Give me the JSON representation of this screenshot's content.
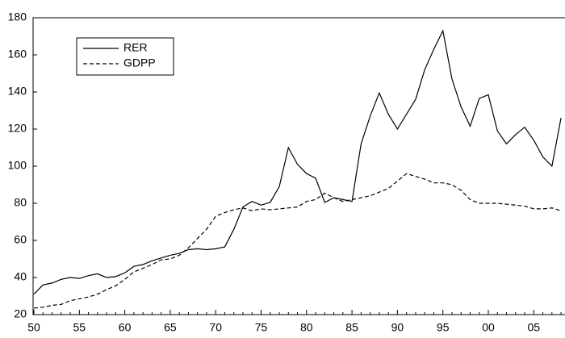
{
  "chart_data": {
    "type": "line",
    "categories": [
      "50",
      null,
      null,
      null,
      null,
      "55",
      null,
      null,
      null,
      null,
      "60",
      null,
      null,
      null,
      null,
      "65",
      null,
      null,
      null,
      null,
      "70",
      null,
      null,
      null,
      null,
      "75",
      null,
      null,
      null,
      null,
      "80",
      null,
      null,
      null,
      null,
      "85",
      null,
      null,
      null,
      null,
      "90",
      null,
      null,
      null,
      null,
      "95",
      null,
      null,
      null,
      null,
      "00",
      null,
      null,
      null,
      null,
      "05",
      null,
      null,
      null
    ],
    "series": [
      {
        "name": "RER",
        "color": "#000000",
        "line_style": "solid",
        "values": [
          31,
          36,
          37,
          39,
          40,
          39.5,
          41,
          42,
          40,
          40.5,
          42.5,
          46,
          47,
          49,
          50.5,
          52,
          53,
          55,
          55.5,
          55,
          55.5,
          56.5,
          66,
          78,
          81,
          79,
          80.5,
          89,
          110,
          101,
          96,
          93.5,
          80.5,
          83,
          82,
          81,
          112,
          127,
          139.5,
          128,
          120,
          128,
          136,
          152,
          163,
          173,
          147,
          132,
          121.5,
          136.5,
          138.5,
          119,
          112,
          117,
          121,
          114,
          105,
          100,
          126
        ]
      },
      {
        "name": "GDPP",
        "color": "#000000",
        "line_style": "dashed",
        "values": [
          23.5,
          24,
          25,
          25.5,
          27.5,
          28.5,
          29.5,
          31,
          33.5,
          35.5,
          39,
          43,
          45,
          47,
          49.5,
          50,
          52,
          56,
          61,
          66,
          73,
          75,
          76.5,
          77.5,
          76,
          77,
          76.5,
          77,
          77.5,
          78,
          81,
          82,
          85.5,
          83,
          81,
          82,
          83,
          84,
          86,
          88,
          92,
          96,
          94.5,
          93,
          91,
          91,
          90,
          87,
          82,
          80,
          80,
          80,
          79.5,
          79,
          78.5,
          77,
          77,
          77.5,
          76
        ]
      }
    ],
    "ylim": [
      20,
      180
    ],
    "yticks": [
      20,
      40,
      60,
      80,
      100,
      120,
      140,
      160,
      180
    ],
    "grid": false,
    "legend": "top-left"
  }
}
